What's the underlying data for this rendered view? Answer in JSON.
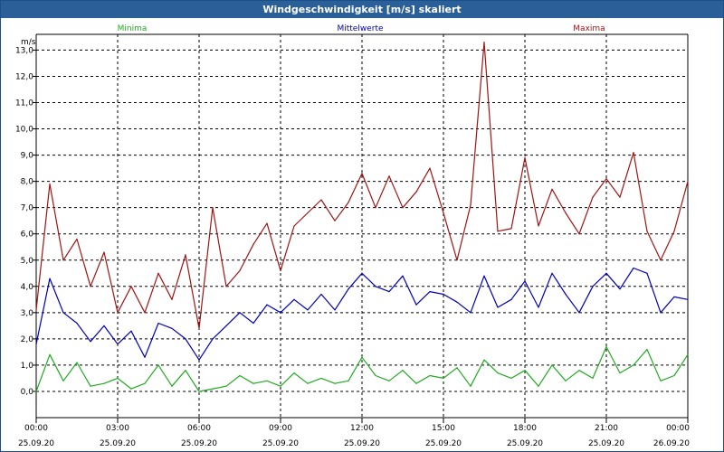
{
  "window": {
    "title": "Windgeschwindigkeit [m/s] skaliert"
  },
  "chart_data": {
    "type": "line",
    "title": "Windgeschwindigkeit [m/s] skaliert",
    "ylabel": "m/s",
    "ylim": [
      -1.0,
      13.6
    ],
    "y_ticks": [
      "13,0",
      "12,0",
      "11,0",
      "10,0",
      "9,0",
      "8,0",
      "7,0",
      "6,0",
      "5,0",
      "4,0",
      "3,0",
      "2,0",
      "1,0",
      "0,0"
    ],
    "x_ticks": [
      {
        "time": "00:00",
        "date": "25.09.20"
      },
      {
        "time": "03:00",
        "date": "25.09.20"
      },
      {
        "time": "06:00",
        "date": "25.09.20"
      },
      {
        "time": "09:00",
        "date": "25.09.20"
      },
      {
        "time": "12:00",
        "date": "25.09.20"
      },
      {
        "time": "15:00",
        "date": "25.09.20"
      },
      {
        "time": "18:00",
        "date": "25.09.20"
      },
      {
        "time": "21:00",
        "date": "25.09.20"
      },
      {
        "time": "00:00",
        "date": "26.09.20"
      }
    ],
    "grid": true,
    "legend_position": "top",
    "series": [
      {
        "name": "Minima",
        "color": "#22aa22",
        "x": [
          "00:00",
          "00:30",
          "01:00",
          "01:30",
          "02:00",
          "02:30",
          "03:00",
          "03:30",
          "04:00",
          "04:30",
          "05:00",
          "05:30",
          "06:00",
          "06:30",
          "07:00",
          "07:30",
          "08:00",
          "08:30",
          "09:00",
          "09:30",
          "10:00",
          "10:30",
          "11:00",
          "11:30",
          "12:00",
          "12:30",
          "13:00",
          "13:30",
          "14:00",
          "14:30",
          "15:00",
          "15:30",
          "16:00",
          "16:30",
          "17:00",
          "17:30",
          "18:00",
          "18:30",
          "19:00",
          "19:30",
          "20:00",
          "20:30",
          "21:00",
          "21:30",
          "22:00",
          "22:30",
          "23:00",
          "23:30",
          "24:00"
        ],
        "values": [
          0.0,
          1.4,
          0.4,
          1.1,
          0.2,
          0.3,
          0.5,
          0.1,
          0.3,
          1.0,
          0.2,
          0.8,
          0.0,
          0.1,
          0.2,
          0.6,
          0.3,
          0.4,
          0.2,
          0.7,
          0.3,
          0.5,
          0.3,
          0.4,
          1.3,
          0.6,
          0.4,
          0.8,
          0.3,
          0.6,
          0.5,
          0.9,
          0.2,
          1.2,
          0.7,
          0.5,
          0.8,
          0.2,
          1.0,
          0.4,
          0.8,
          0.5,
          1.7,
          0.7,
          1.0,
          1.6,
          0.4,
          0.6,
          1.4
        ]
      },
      {
        "name": "Mittelwerte",
        "color": "#0000b4",
        "x": [
          "00:00",
          "00:30",
          "01:00",
          "01:30",
          "02:00",
          "02:30",
          "03:00",
          "03:30",
          "04:00",
          "04:30",
          "05:00",
          "05:30",
          "06:00",
          "06:30",
          "07:00",
          "07:30",
          "08:00",
          "08:30",
          "09:00",
          "09:30",
          "10:00",
          "10:30",
          "11:00",
          "11:30",
          "12:00",
          "12:30",
          "13:00",
          "13:30",
          "14:00",
          "14:30",
          "15:00",
          "15:30",
          "16:00",
          "16:30",
          "17:00",
          "17:30",
          "18:00",
          "18:30",
          "19:00",
          "19:30",
          "20:00",
          "20:30",
          "21:00",
          "21:30",
          "22:00",
          "22:30",
          "23:00",
          "23:30",
          "24:00"
        ],
        "values": [
          1.8,
          4.3,
          3.0,
          2.6,
          1.9,
          2.5,
          1.8,
          2.3,
          1.3,
          2.6,
          2.4,
          2.0,
          1.2,
          2.0,
          2.5,
          3.0,
          2.6,
          3.3,
          3.0,
          3.5,
          3.1,
          3.7,
          3.1,
          3.9,
          4.5,
          4.0,
          3.8,
          4.4,
          3.3,
          3.8,
          3.7,
          3.4,
          3.0,
          4.4,
          3.2,
          3.5,
          4.2,
          3.2,
          4.5,
          3.7,
          3.0,
          4.0,
          4.5,
          3.9,
          4.7,
          4.5,
          3.0,
          3.6,
          3.5
        ]
      },
      {
        "name": "Maxima",
        "color": "#a01414",
        "x": [
          "00:00",
          "00:30",
          "01:00",
          "01:30",
          "02:00",
          "02:30",
          "03:00",
          "03:30",
          "04:00",
          "04:30",
          "05:00",
          "05:30",
          "06:00",
          "06:30",
          "07:00",
          "07:30",
          "08:00",
          "08:30",
          "09:00",
          "09:30",
          "10:00",
          "10:30",
          "11:00",
          "11:30",
          "12:00",
          "12:30",
          "13:00",
          "13:30",
          "14:00",
          "14:30",
          "15:00",
          "15:30",
          "16:00",
          "16:30",
          "17:00",
          "17:30",
          "18:00",
          "18:30",
          "19:00",
          "19:30",
          "20:00",
          "20:30",
          "21:00",
          "21:30",
          "22:00",
          "22:30",
          "23:00",
          "23:30",
          "24:00"
        ],
        "values": [
          3.1,
          7.9,
          5.0,
          5.8,
          4.0,
          5.3,
          3.0,
          4.0,
          3.0,
          4.5,
          3.5,
          5.2,
          2.4,
          7.0,
          4.0,
          4.6,
          5.6,
          6.4,
          4.6,
          6.3,
          6.8,
          7.3,
          6.5,
          7.2,
          8.3,
          7.0,
          8.2,
          7.0,
          7.6,
          8.5,
          6.8,
          5.0,
          7.1,
          13.3,
          6.1,
          6.2,
          8.9,
          6.3,
          7.7,
          6.8,
          6.0,
          7.4,
          8.1,
          7.4,
          9.1,
          6.1,
          5.0,
          6.1,
          8.0
        ]
      }
    ]
  }
}
